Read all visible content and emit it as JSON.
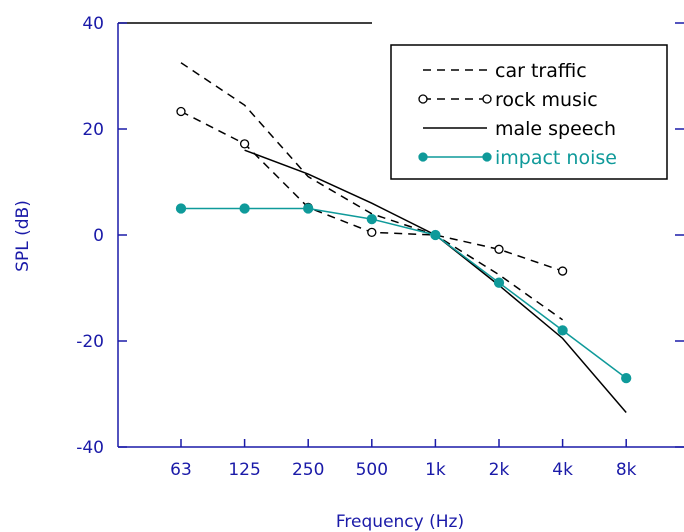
{
  "chart_data": {
    "type": "line",
    "xlabel": "Frequency (Hz)",
    "ylabel": "SPL (dB)",
    "categories": [
      "63",
      "125",
      "250",
      "500",
      "1k",
      "2k",
      "4k",
      "8k"
    ],
    "ylim": [
      -40,
      40
    ],
    "yticks": [
      40,
      20,
      0,
      -20,
      -40
    ],
    "ytick_labels": [
      "40",
      "20",
      "0",
      "-20",
      "-40"
    ],
    "grid": false,
    "legend_position": "top-right",
    "series": [
      {
        "name": "car traffic",
        "style": "dashed",
        "marker": "none",
        "color": "#000000",
        "label_color": "#000000",
        "values": [
          32.5,
          24.5,
          11,
          4,
          0,
          -7.5,
          -16,
          null
        ]
      },
      {
        "name": "rock music",
        "style": "dashed",
        "marker": "open-circle",
        "color": "#000000",
        "label_color": "#000000",
        "values": [
          23.3,
          17.2,
          5.2,
          0.5,
          0,
          -2.7,
          -6.8,
          null
        ]
      },
      {
        "name": "male speech",
        "style": "solid",
        "marker": "none",
        "color": "#000000",
        "label_color": "#000000",
        "values": [
          null,
          16,
          11.5,
          6,
          0,
          -9.5,
          -19.5,
          -33.5
        ]
      },
      {
        "name": "impact noise",
        "style": "solid",
        "marker": "filled-circle",
        "color": "#0f9a9a",
        "label_color": "#0f9a9a",
        "values": [
          5,
          5,
          5,
          3,
          0,
          -9,
          -18,
          -27
        ]
      }
    ]
  },
  "colors": {
    "axis": "#1a1aa8",
    "frame": "#000000",
    "impact_noise": "#0f9a9a"
  }
}
